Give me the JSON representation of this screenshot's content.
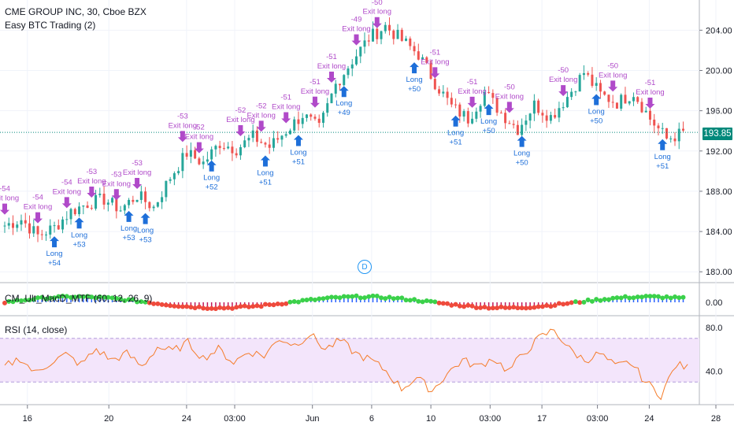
{
  "chart_header": {
    "symbol": "CME GROUP INC, 30, Cboe BZX",
    "strategy": "Easy BTC Trading (2)"
  },
  "indicators": {
    "macd_label": "CM_Ult_MacD_MTF (60, 12, 26, 9)",
    "macd_value": "0.00",
    "rsi_label": "RSI (14, close)",
    "rsi_top_tick": "80.0",
    "rsi_mid_tick": "40.0"
  },
  "price_axis": {
    "ticks": [
      "204.00",
      "200.00",
      "196.00",
      "192.00",
      "188.00",
      "184.00",
      "180.00"
    ],
    "last_price": "193.85"
  },
  "time_axis": {
    "ticks": [
      "16",
      "20",
      "24",
      "03:00",
      "Jun",
      "6",
      "10",
      "03:00",
      "17",
      "03:00",
      "24",
      "28"
    ]
  },
  "events": {
    "dividend_marker": "D"
  },
  "signal_text": {
    "exit": "Exit long",
    "long": "Long"
  },
  "chart_data": {
    "type": "candlestick",
    "title": "CME GROUP INC, 30, Cboe BZX",
    "ylim": [
      179,
      207
    ],
    "last_price": 193.85,
    "price_path": [
      [
        0,
        184.6
      ],
      [
        4,
        185.2
      ],
      [
        8,
        183.6
      ],
      [
        12,
        184.4
      ],
      [
        16,
        186.0
      ],
      [
        20,
        186.8
      ],
      [
        24,
        187.2
      ],
      [
        28,
        186.2
      ],
      [
        32,
        187.6
      ],
      [
        36,
        186.4
      ],
      [
        40,
        189.4
      ],
      [
        44,
        191.8
      ],
      [
        48,
        190.8
      ],
      [
        52,
        192.8
      ],
      [
        56,
        192.2
      ],
      [
        60,
        193.4
      ],
      [
        64,
        192.4
      ],
      [
        68,
        194.0
      ],
      [
        72,
        195.6
      ],
      [
        76,
        194.2
      ],
      [
        80,
        198.6
      ],
      [
        84,
        201.0
      ],
      [
        88,
        203.2
      ],
      [
        92,
        204.4
      ],
      [
        96,
        203.0
      ],
      [
        100,
        201.6
      ],
      [
        104,
        198.8
      ],
      [
        108,
        196.4
      ],
      [
        112,
        195.2
      ],
      [
        116,
        197.8
      ],
      [
        120,
        195.8
      ],
      [
        124,
        194.2
      ],
      [
        128,
        196.6
      ],
      [
        132,
        195.4
      ],
      [
        136,
        197.4
      ],
      [
        140,
        199.8
      ],
      [
        144,
        197.6
      ],
      [
        148,
        196.8
      ],
      [
        152,
        197.8
      ],
      [
        156,
        195.2
      ],
      [
        160,
        193.2
      ],
      [
        164,
        193.8
      ]
    ],
    "rsi": {
      "ylim": [
        10,
        90
      ],
      "overbought": 70,
      "oversold": 30,
      "values": [
        44,
        52,
        38,
        48,
        55,
        46,
        60,
        50,
        56,
        44,
        62,
        58,
        66,
        52,
        60,
        48,
        58,
        54,
        70,
        64,
        74,
        60,
        68,
        56,
        50,
        40,
        24,
        34,
        22,
        38,
        50,
        44,
        52,
        40,
        56,
        70,
        78,
        60,
        50,
        56,
        44,
        48,
        30,
        18,
        46,
        42
      ]
    },
    "signals": [
      {
        "type": "exit",
        "x": 0,
        "profit": "-54"
      },
      {
        "type": "exit",
        "x": 8,
        "profit": "-54"
      },
      {
        "type": "long",
        "x": 12,
        "profit": "+54"
      },
      {
        "type": "exit",
        "x": 15,
        "profit": "-54"
      },
      {
        "type": "long",
        "x": 18,
        "profit": "+53"
      },
      {
        "type": "exit",
        "x": 21,
        "profit": "-53"
      },
      {
        "type": "exit",
        "x": 27,
        "profit": "-53"
      },
      {
        "type": "long",
        "x": 30,
        "profit": "+53"
      },
      {
        "type": "exit",
        "x": 32,
        "profit": "-53"
      },
      {
        "type": "long",
        "x": 34,
        "profit": "+53"
      },
      {
        "type": "exit",
        "x": 43,
        "profit": "-53"
      },
      {
        "type": "exit",
        "x": 47,
        "profit": "-52"
      },
      {
        "type": "long",
        "x": 50,
        "profit": "+52"
      },
      {
        "type": "exit",
        "x": 57,
        "profit": "-52"
      },
      {
        "type": "exit",
        "x": 62,
        "profit": "-52"
      },
      {
        "type": "long",
        "x": 63,
        "profit": "+51"
      },
      {
        "type": "exit",
        "x": 68,
        "profit": "-51"
      },
      {
        "type": "long",
        "x": 71,
        "profit": "+51"
      },
      {
        "type": "exit",
        "x": 75,
        "profit": "-51"
      },
      {
        "type": "exit",
        "x": 79,
        "profit": "-51"
      },
      {
        "type": "long",
        "x": 82,
        "profit": "+49"
      },
      {
        "type": "exit",
        "x": 85,
        "profit": "-49"
      },
      {
        "type": "exit",
        "x": 90,
        "profit": "-50"
      },
      {
        "type": "long",
        "x": 99,
        "profit": "+50"
      },
      {
        "type": "exit",
        "x": 104,
        "profit": "-51"
      },
      {
        "type": "long",
        "x": 109,
        "profit": "+51"
      },
      {
        "type": "exit",
        "x": 113,
        "profit": "-51"
      },
      {
        "type": "long",
        "x": 117,
        "profit": "+50"
      },
      {
        "type": "exit",
        "x": 122,
        "profit": "-50"
      },
      {
        "type": "long",
        "x": 125,
        "profit": "+50"
      },
      {
        "type": "exit",
        "x": 135,
        "profit": "-50"
      },
      {
        "type": "long",
        "x": 143,
        "profit": "+50"
      },
      {
        "type": "exit",
        "x": 147,
        "profit": "-50"
      },
      {
        "type": "exit",
        "x": 156,
        "profit": "-51"
      },
      {
        "type": "long",
        "x": 159,
        "profit": "+51"
      }
    ],
    "colors": {
      "up": "#26a69a",
      "down": "#ef5350",
      "rsi_line": "#f57c2a",
      "rsi_band": "#f3e5fb",
      "exit_marker": "#b04ac9",
      "long_marker": "#1e6fd9",
      "last_price_bg": "#00897b"
    }
  }
}
